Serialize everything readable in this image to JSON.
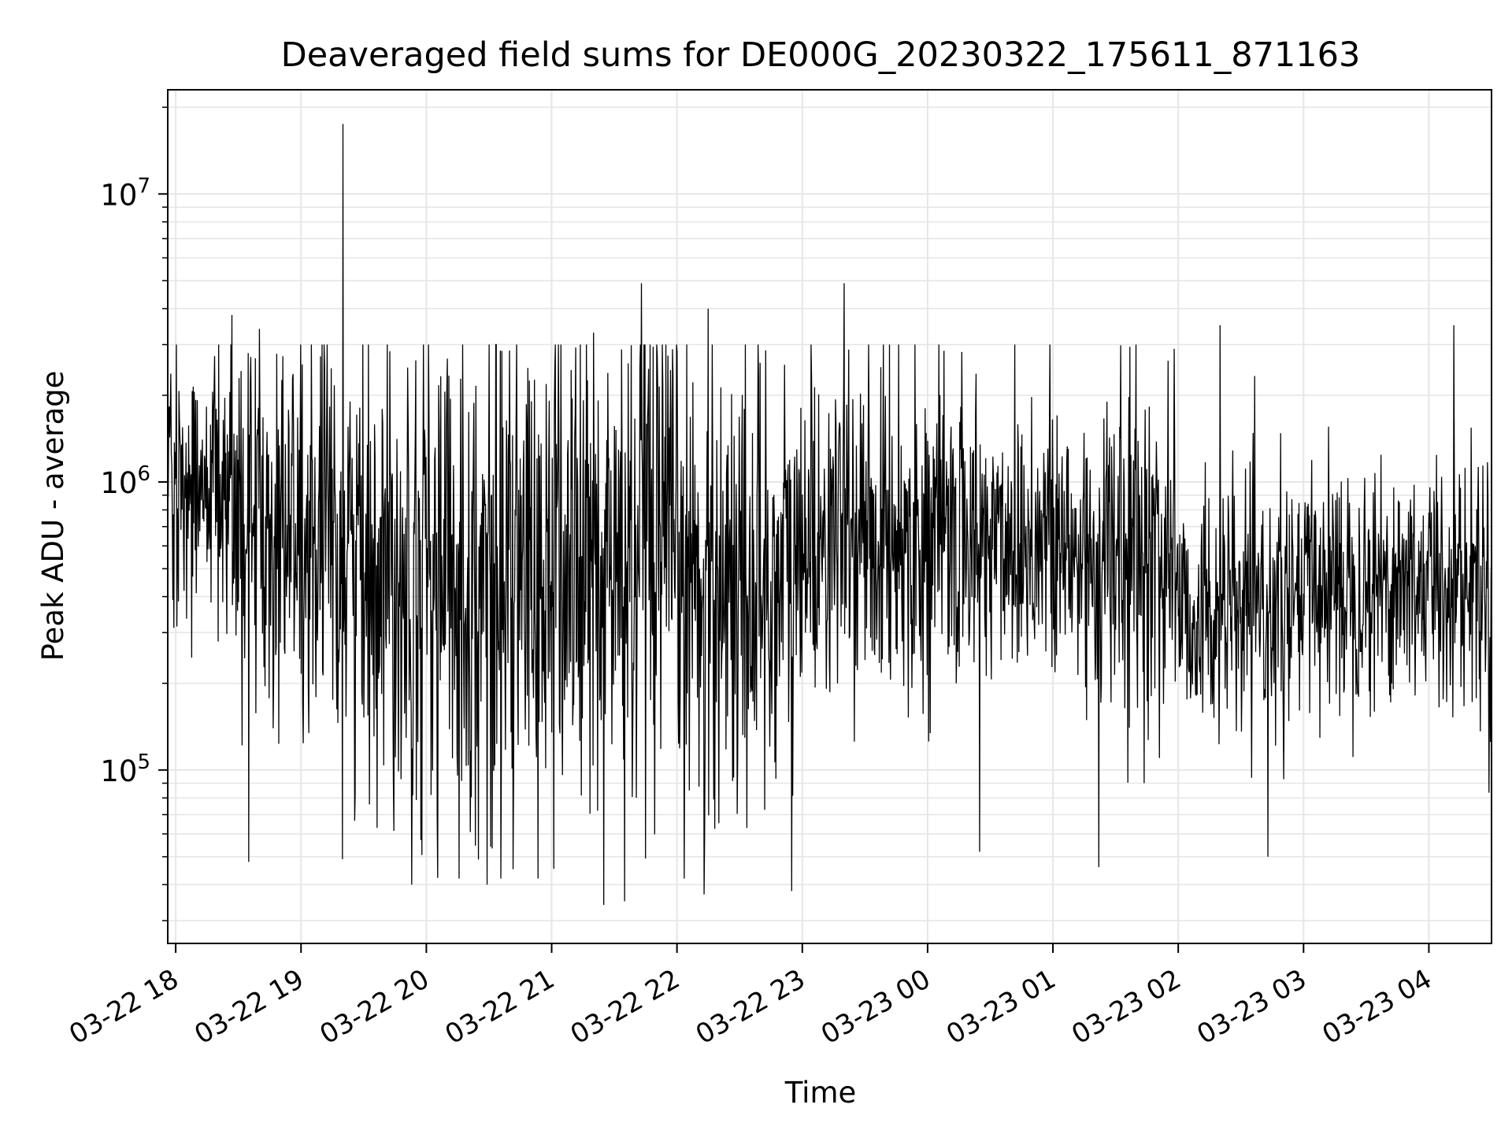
{
  "chart_data": {
    "type": "line",
    "title": "Deaveraged field sums for DE000G_20230322_175611_871163",
    "xlabel": "Time",
    "ylabel": "Peak ADU - average",
    "yscale": "log",
    "ylim": [
      25000,
      23000000
    ],
    "xlim": [
      "2023-03-22 17:56:11",
      "2023-03-23 04:30:00"
    ],
    "grid": true,
    "legend": "none",
    "line_color": "#000000",
    "x_ticks": [
      {
        "value": "2023-03-22 18:00",
        "label": "03-22 18"
      },
      {
        "value": "2023-03-22 19:00",
        "label": "03-22 19"
      },
      {
        "value": "2023-03-22 20:00",
        "label": "03-22 20"
      },
      {
        "value": "2023-03-22 21:00",
        "label": "03-22 21"
      },
      {
        "value": "2023-03-22 22:00",
        "label": "03-22 22"
      },
      {
        "value": "2023-03-22 23:00",
        "label": "03-22 23"
      },
      {
        "value": "2023-03-23 00:00",
        "label": "03-23 00"
      },
      {
        "value": "2023-03-23 01:00",
        "label": "03-23 01"
      },
      {
        "value": "2023-03-23 02:00",
        "label": "03-23 02"
      },
      {
        "value": "2023-03-23 03:00",
        "label": "03-23 03"
      },
      {
        "value": "2023-03-23 04:00",
        "label": "03-23 04"
      }
    ],
    "y_ticks": [
      {
        "value": 100000,
        "base": "10",
        "exp": "5"
      },
      {
        "value": 1000000,
        "base": "10",
        "exp": "6"
      },
      {
        "value": 10000000,
        "base": "10",
        "exp": "7"
      }
    ],
    "segments": [
      {
        "start": "2023-03-22 17:56:11",
        "end": "2023-03-22 18:30",
        "median": 900000,
        "spread": 0.9
      },
      {
        "start": "2023-03-22 18:30",
        "end": "2023-03-22 19:00",
        "median": 700000,
        "spread": 1.3
      },
      {
        "start": "2023-03-22 19:00",
        "end": "2023-03-22 20:00",
        "median": 550000,
        "spread": 1.5
      },
      {
        "start": "2023-03-22 20:00",
        "end": "2023-03-22 21:00",
        "median": 450000,
        "spread": 1.6
      },
      {
        "start": "2023-03-22 21:00",
        "end": "2023-03-22 22:00",
        "median": 500000,
        "spread": 1.7
      },
      {
        "start": "2023-03-22 22:00",
        "end": "2023-03-22 23:00",
        "median": 450000,
        "spread": 1.5
      },
      {
        "start": "2023-03-22 23:00",
        "end": "2023-03-23 01:00",
        "median": 650000,
        "spread": 1.0
      },
      {
        "start": "2023-03-23 01:00",
        "end": "2023-03-23 02:00",
        "median": 550000,
        "spread": 1.1
      },
      {
        "start": "2023-03-23 02:00",
        "end": "2023-03-23 03:00",
        "median": 350000,
        "spread": 0.8
      },
      {
        "start": "2023-03-23 03:00",
        "end": "2023-03-23 04:30",
        "median": 450000,
        "spread": 0.8
      }
    ],
    "peaks": [
      {
        "x": "2023-03-22 19:20",
        "y": 17500000
      },
      {
        "x": "2023-03-22 21:43",
        "y": 4900000
      },
      {
        "x": "2023-03-22 22:15",
        "y": 4000000
      },
      {
        "x": "2023-03-22 23:20",
        "y": 4900000
      },
      {
        "x": "2023-03-22 18:27",
        "y": 3800000
      },
      {
        "x": "2023-03-23 02:20",
        "y": 3500000
      },
      {
        "x": "2023-03-23 04:12",
        "y": 3500000
      },
      {
        "x": "2023-03-22 18:40",
        "y": 3400000
      },
      {
        "x": "2023-03-22 21:20",
        "y": 3300000
      },
      {
        "x": "2023-03-23 01:58",
        "y": 2900000
      }
    ],
    "troughs": [
      {
        "x": "2023-03-22 21:25",
        "y": 34000
      },
      {
        "x": "2023-03-22 21:35",
        "y": 35000
      },
      {
        "x": "2023-03-22 22:13",
        "y": 37000
      },
      {
        "x": "2023-03-22 22:55",
        "y": 38000
      },
      {
        "x": "2023-03-22 19:53",
        "y": 40000
      },
      {
        "x": "2023-03-22 20:29",
        "y": 40000
      },
      {
        "x": "2023-03-23 01:22",
        "y": 46000
      },
      {
        "x": "2023-03-23 00:25",
        "y": 52000
      },
      {
        "x": "2023-03-23 02:43",
        "y": 50000
      }
    ]
  }
}
